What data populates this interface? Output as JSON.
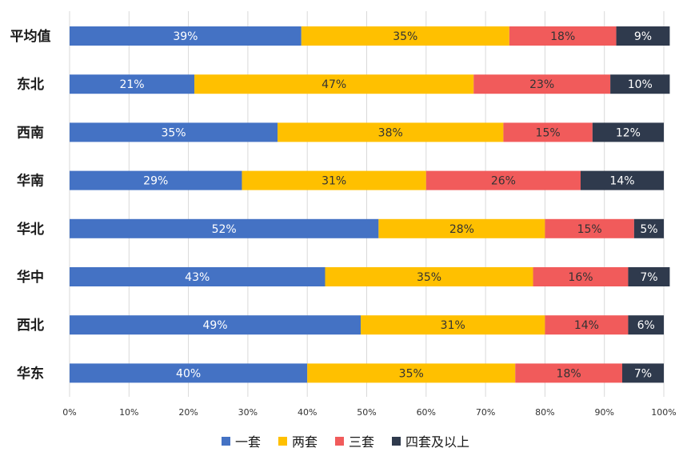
{
  "chart_data": {
    "type": "bar",
    "orientation": "horizontal",
    "stacked": true,
    "categories": [
      "平均值",
      "东北",
      "西南",
      "华南",
      "华北",
      "华中",
      "西北",
      "华东"
    ],
    "series": [
      {
        "name": "一套",
        "color": "#4472C4",
        "label_color": "#ffffff",
        "values": [
          39,
          21,
          35,
          29,
          52,
          43,
          49,
          40
        ]
      },
      {
        "name": "两套",
        "color": "#FFC000",
        "label_color": "#333333",
        "values": [
          35,
          47,
          38,
          31,
          28,
          35,
          31,
          35
        ]
      },
      {
        "name": "三套",
        "color": "#F15B5B",
        "label_color": "#333333",
        "values": [
          18,
          23,
          15,
          26,
          15,
          16,
          14,
          18
        ]
      },
      {
        "name": "四套及以上",
        "color": "#2F3A4D",
        "label_color": "#ffffff",
        "values": [
          9,
          10,
          12,
          14,
          5,
          7,
          6,
          7
        ]
      }
    ],
    "data_label_suffix": "%",
    "x_ticks": [
      "0%",
      "10%",
      "20%",
      "30%",
      "40%",
      "50%",
      "60%",
      "70%",
      "80%",
      "90%",
      "100%"
    ],
    "xlim": [
      0,
      100
    ],
    "grid": "vertical",
    "legend_position": "bottom"
  }
}
